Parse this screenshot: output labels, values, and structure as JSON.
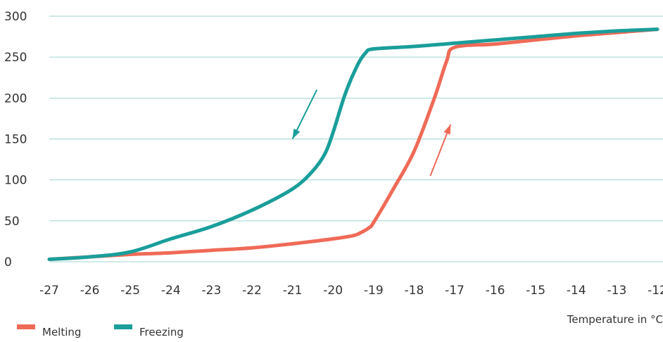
{
  "chart_data": {
    "type": "line",
    "xlabel": "Temperature in °C",
    "ylabel": "",
    "xlim": [
      -27,
      -12
    ],
    "ylim": [
      0,
      300
    ],
    "x_ticks": [
      -27,
      -26,
      -25,
      -24,
      -23,
      -22,
      -21,
      -20,
      -19,
      -18,
      -17,
      -16,
      -15,
      -14,
      -13,
      -12
    ],
    "y_ticks": [
      0,
      50,
      100,
      150,
      200,
      250,
      300
    ],
    "grid": "horizontal",
    "legend_position": "bottom-left",
    "series": [
      {
        "name": "Melting",
        "color": "#ef6a57",
        "points": [
          [
            -27,
            3
          ],
          [
            -26,
            6
          ],
          [
            -25,
            9
          ],
          [
            -24,
            11
          ],
          [
            -23,
            14
          ],
          [
            -22,
            17
          ],
          [
            -21,
            22
          ],
          [
            -20,
            28
          ],
          [
            -19.5,
            32
          ],
          [
            -19.3,
            36
          ],
          [
            -19.1,
            42
          ],
          [
            -19,
            48
          ],
          [
            -18.5,
            90
          ],
          [
            -18,
            135
          ],
          [
            -17.5,
            200
          ],
          [
            -17.2,
            245
          ],
          [
            -17,
            262
          ],
          [
            -16,
            266
          ],
          [
            -15,
            271
          ],
          [
            -14,
            276
          ],
          [
            -13,
            280
          ],
          [
            -12,
            284
          ]
        ]
      },
      {
        "name": "Freezing",
        "color": "#1a9e9a",
        "points": [
          [
            -27,
            3
          ],
          [
            -26,
            6
          ],
          [
            -25,
            12
          ],
          [
            -24,
            28
          ],
          [
            -23,
            43
          ],
          [
            -22,
            63
          ],
          [
            -21,
            89
          ],
          [
            -20.5,
            111
          ],
          [
            -20.2,
            132
          ],
          [
            -20,
            158
          ],
          [
            -19.7,
            205
          ],
          [
            -19.4,
            240
          ],
          [
            -19.2,
            255
          ],
          [
            -19,
            260
          ],
          [
            -18,
            263
          ],
          [
            -17,
            267
          ],
          [
            -16,
            271
          ],
          [
            -15,
            275
          ],
          [
            -14,
            279
          ],
          [
            -13,
            282
          ],
          [
            -12,
            284
          ]
        ]
      }
    ],
    "annotations": [
      {
        "type": "arrow",
        "series": "Freezing",
        "direction": "down-left",
        "from": [
          -20.4,
          210
        ],
        "to": [
          -21,
          150
        ]
      },
      {
        "type": "arrow",
        "series": "Melting",
        "direction": "up-right",
        "from": [
          -17.6,
          105
        ],
        "to": [
          -17.1,
          168
        ]
      }
    ]
  }
}
